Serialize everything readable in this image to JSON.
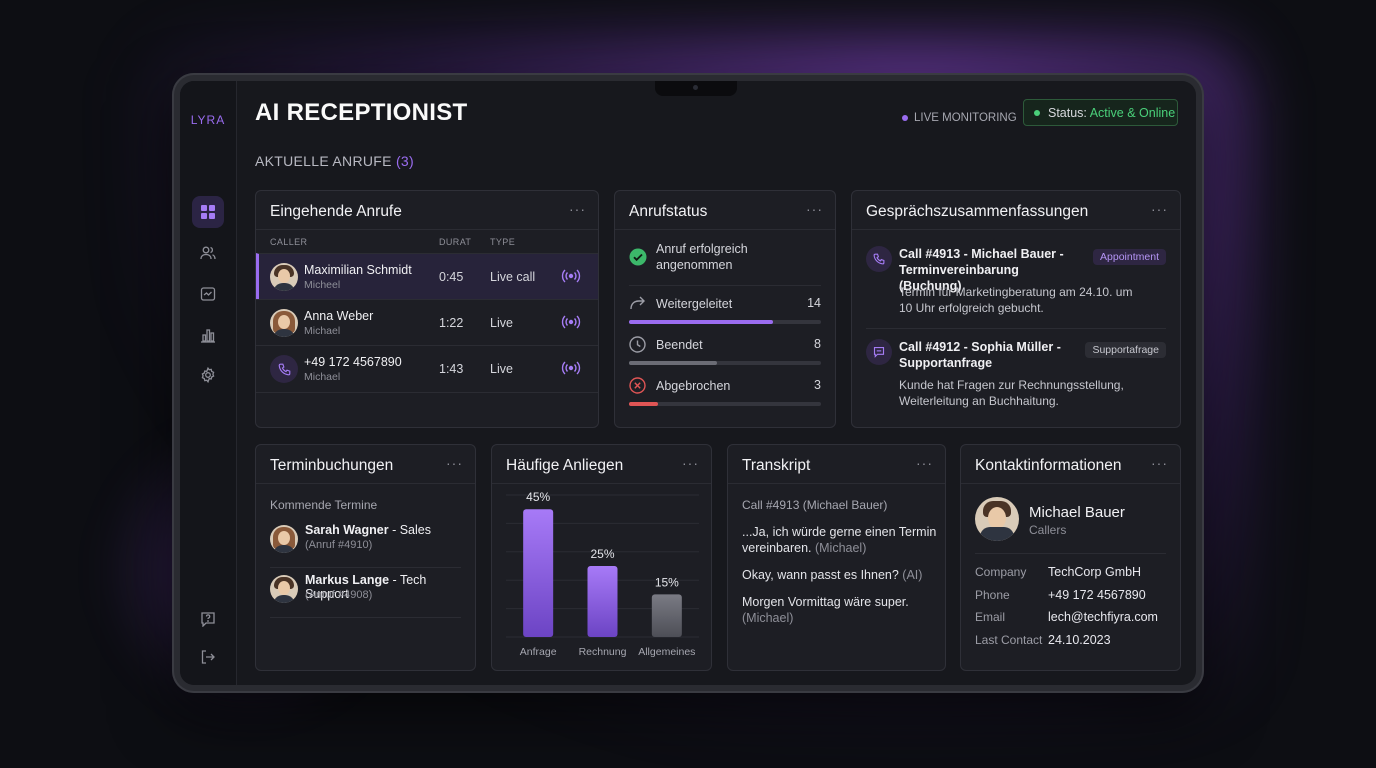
{
  "app": {
    "logo": "LYRA",
    "title": "AI RECEPTIONIST",
    "live_monitoring": "LIVE MONITORING",
    "status_label": "Status:",
    "status_value": "Active & Online",
    "section_title": "AKTUELLE ANRUFE",
    "section_count": "(3)"
  },
  "colors": {
    "accent": "#9a6cf0",
    "success": "#4ad07a",
    "danger": "#e05555",
    "neutral_bar": "#6b6c75"
  },
  "sidebar": {
    "items": [
      {
        "icon": "dashboard-icon",
        "active": true
      },
      {
        "icon": "users-icon",
        "active": false
      },
      {
        "icon": "calendar-icon",
        "active": false
      },
      {
        "icon": "bar-chart-icon",
        "active": false
      },
      {
        "icon": "gear-icon",
        "active": false
      }
    ],
    "bottom": [
      {
        "icon": "help-icon"
      },
      {
        "icon": "logout-icon"
      }
    ]
  },
  "incoming": {
    "title": "Eingehende Anrufe",
    "menu": "···",
    "columns": [
      "CALLER",
      "DURAT",
      "TYPE"
    ],
    "rows": [
      {
        "name": "Maximilian Schmidt",
        "sub": "Micheel",
        "duration": "0:45",
        "type": "Live call",
        "avatar": "male"
      },
      {
        "name": "Anna Weber",
        "sub": "Michael",
        "duration": "1:22",
        "type": "Live",
        "avatar": "female"
      },
      {
        "name": "+49 172 4567890",
        "sub": "Michael",
        "duration": "1:43",
        "type": "Live",
        "avatar": "phone"
      }
    ]
  },
  "callstatus": {
    "title": "Anrufstatus",
    "menu": "···",
    "accepted_line1": "Anruf erfolgreich",
    "accepted_line2": "angenommen",
    "items": [
      {
        "label": "Weitergeleitet",
        "value": "14",
        "fill": 0.75,
        "color": "#9a6cf0"
      },
      {
        "label": "Beendet",
        "value": "8",
        "fill": 0.46,
        "color": "#6b6c75"
      },
      {
        "label": "Abgebrochen",
        "value": "3",
        "fill": 0.15,
        "color": "#e05555"
      }
    ]
  },
  "summaries": {
    "title": "Gesprächszusammenfassungen",
    "menu": "···",
    "items": [
      {
        "title_line1": "Call #4913 - Michael Bauer -",
        "title_line2": "Terminvereinbarung (Buchung)",
        "tag": "Appointment",
        "text_line1": "Termin für Marketingberatung am 24.10. um",
        "text_line2": "10 Uhr erfolgreich gebucht."
      },
      {
        "title_line1": "Call #4912 - Sophia Müller -",
        "title_line2": "Supportanfrage",
        "tag": "Supportafrage",
        "text_line1": "Kunde hat Fragen zur Rechnungsstellung,",
        "text_line2": "Weiterleitung an Buchhaitung."
      }
    ]
  },
  "bookings": {
    "title": "Terminbuchungen",
    "menu": "···",
    "subtitle": "Kommende Termine",
    "items": [
      {
        "name": "Sarah Wagner",
        "role": " - Sales",
        "ref": "(Anruf #4910)",
        "avatar": "female"
      },
      {
        "name": "Markus Lange",
        "role": " - Tech Support",
        "ref": "(Anruf #4908)",
        "avatar": "male"
      }
    ]
  },
  "concerns": {
    "title": "Häufige Anliegen",
    "menu": "···"
  },
  "chart_data": {
    "type": "bar",
    "categories": [
      "Anfrage",
      "Rechnung",
      "Allgemeines"
    ],
    "values": [
      45,
      25,
      15
    ],
    "labels": [
      "45%",
      "25%",
      "15%"
    ],
    "ylim": [
      0,
      50
    ]
  },
  "transcript": {
    "title": "Transkript",
    "menu": "···",
    "header": "Call #4913 (Michael Bauer)",
    "lines": [
      {
        "l1": "...Ja, ich würde gerne einen Termin",
        "l2": "vereinbaren.",
        "who": " (Michael)"
      },
      {
        "l1": "Okay, wann passt es Ihnen?",
        "l2": "",
        "who": " (AI)"
      },
      {
        "l1": "Morgen Vormittag wäre super.",
        "l2": "",
        "who": "(Michael)"
      }
    ]
  },
  "contact": {
    "title": "Kontaktinformationen",
    "menu": "···",
    "name": "Michael Bauer",
    "role": "Callers",
    "fields": [
      {
        "k": "Company",
        "v": "TechCorp GmbH"
      },
      {
        "k": "Phone",
        "v": "+49 172 4567890"
      },
      {
        "k": "Email",
        "v": "lech@techfiyra.com"
      },
      {
        "k": "Last Contact",
        "v": "24.10.2023"
      }
    ]
  }
}
